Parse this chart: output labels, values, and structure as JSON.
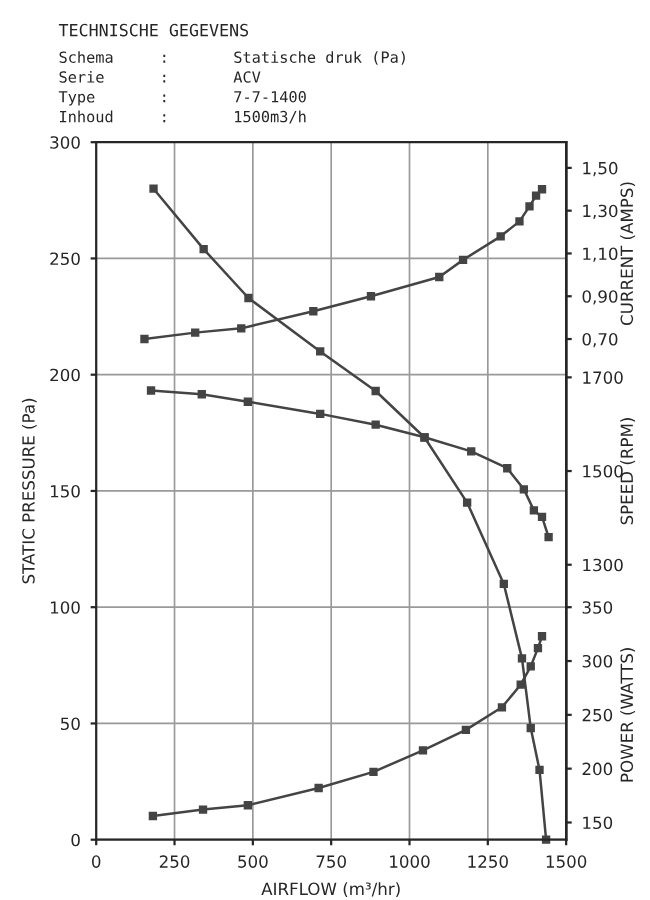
{
  "chart_data": [
    {
      "type": "line",
      "title": "TECHNISCHE GEGEVENS",
      "annotations": [
        "Schema     :       Statische druk (Pa)",
        "Serie      :       ACV",
        "Type       :       7-7-1400",
        "Inhoud     :       1500m3/h"
      ],
      "xlabel": "AIRFLOW (m³/hr)",
      "ylabel": "STATIC PRESSURE (Pa)",
      "y2label": "CURRENT (AMPS)",
      "y3label": "SPEED (RPM)",
      "xlim": [
        0,
        1500
      ],
      "xticks": [
        0,
        250,
        500,
        750,
        1000,
        1250,
        1500
      ],
      "ylim": [
        0,
        300
      ],
      "yticks": [
        0,
        50,
        100,
        150,
        200,
        250,
        300
      ],
      "y2lim": [
        -1.64,
        1.62
      ],
      "y2ticks": [
        {
          "value": 0.7,
          "label": "0,70"
        },
        {
          "value": 0.9,
          "label": "0,90"
        },
        {
          "value": 1.1,
          "label": "1,10"
        },
        {
          "value": 1.3,
          "label": "1,30"
        },
        {
          "value": 1.5,
          "label": "1,50"
        }
      ],
      "y3lim": [
        713,
        2202
      ],
      "y3ticks": [
        1300,
        1500,
        1700
      ],
      "grid": true,
      "marker": "square",
      "line_style": "solid",
      "series": [
        {
          "color": "#444444",
          "axis": "y",
          "x": [
            183,
            343,
            486,
            715,
            892,
            1048,
            1184,
            1301,
            1359,
            1387,
            1415,
            1436
          ],
          "values": [
            280,
            254,
            233,
            210,
            193,
            173,
            145,
            110,
            78,
            48,
            30,
            0
          ]
        },
        {
          "color": "#444444",
          "axis": "y2",
          "x": [
            154,
            316,
            463,
            693,
            877,
            1095,
            1171,
            1291,
            1351,
            1383,
            1404,
            1423
          ],
          "values": [
            0.7,
            0.73,
            0.75,
            0.83,
            0.9,
            0.99,
            1.07,
            1.18,
            1.25,
            1.32,
            1.37,
            1.4
          ]
        },
        {
          "color": "#444444",
          "axis": "y3",
          "x": [
            175,
            337,
            484,
            715,
            892,
            1048,
            1197,
            1312,
            1365,
            1397,
            1423,
            1444
          ],
          "values": [
            1672,
            1664,
            1648,
            1622,
            1599,
            1572,
            1542,
            1506,
            1461,
            1416,
            1402,
            1359
          ]
        }
      ]
    },
    {
      "type": "line",
      "ylabel": "POWER (WATTS)",
      "xlim": [
        0,
        1500
      ],
      "ylim": [
        134,
        782
      ],
      "yticks": [
        150,
        200,
        250,
        300,
        350
      ],
      "tick_labels": "y",
      "marker": "square",
      "line_style": "solid",
      "series": [
        {
          "color": "#444444",
          "x": [
            181,
            341,
            484,
            710,
            885,
            1043,
            1180,
            1295,
            1355,
            1387,
            1410,
            1423
          ],
          "values": [
            156,
            162,
            166,
            182,
            197,
            217,
            236,
            257,
            278,
            295,
            312,
            323
          ]
        }
      ]
    }
  ]
}
